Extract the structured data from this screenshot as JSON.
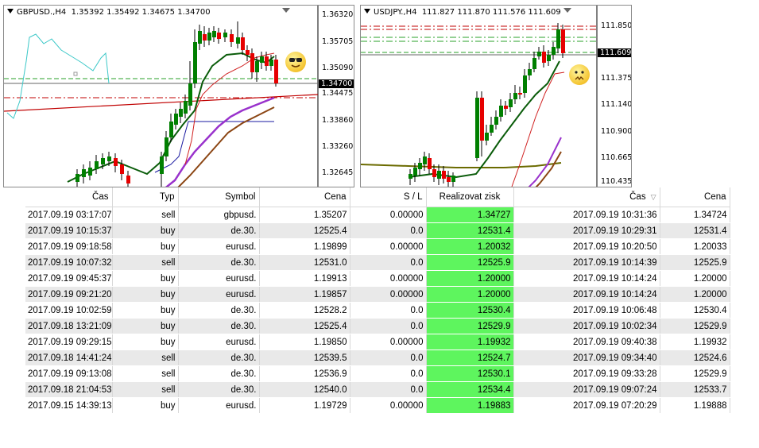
{
  "chart1": {
    "title_symbol": "GBPUSD.,H4",
    "ohlc": "1.35392 1.35492 1.34675 1.34700",
    "price_labels": [
      "1.36320",
      "1.35705",
      "1.35090",
      "1.34700",
      "1.34475",
      "1.33860",
      "1.33260",
      "1.32645"
    ],
    "current_price": "1.34700",
    "emoji": "cool-face-icon"
  },
  "chart2": {
    "title_symbol": "USDJPY.,H4",
    "ohlc": "111.827 111.870 111.576 111.609",
    "price_labels": [
      "111.850",
      "111.609",
      "111.375",
      "111.140",
      "110.900",
      "110.665",
      "110.435"
    ],
    "current_price": "111.609",
    "emoji": "sick-face-icon"
  },
  "colors": {
    "bull_candle": "#007f00",
    "bear_candle": "#e60000",
    "profit_highlight": "#5ef55e",
    "row_alt": "#e9e9e9"
  },
  "table": {
    "columns": [
      "Čas",
      "Typ",
      "Symbol",
      "Cena",
      "S / L",
      "Realizovat zisk",
      "Čas",
      "Cena"
    ],
    "sort_column_indicator": "▽",
    "rows": [
      [
        "2017.09.19 03:17:07",
        "sell",
        "gbpusd.",
        "1.35207",
        "0.00000",
        "1.34727",
        "2017.09.19 10:31:36",
        "1.34724"
      ],
      [
        "2017.09.19 10:15:37",
        "buy",
        "de.30.",
        "12525.4",
        "0.0",
        "12531.4",
        "2017.09.19 10:29:31",
        "12531.4"
      ],
      [
        "2017.09.19 09:18:58",
        "buy",
        "eurusd.",
        "1.19899",
        "0.00000",
        "1.20032",
        "2017.09.19 10:20:50",
        "1.20033"
      ],
      [
        "2017.09.19 10:07:32",
        "sell",
        "de.30.",
        "12531.0",
        "0.0",
        "12525.9",
        "2017.09.19 10:14:39",
        "12525.9"
      ],
      [
        "2017.09.19 09:45:37",
        "buy",
        "eurusd.",
        "1.19913",
        "0.00000",
        "1.20000",
        "2017.09.19 10:14:24",
        "1.20000"
      ],
      [
        "2017.09.19 09:21:20",
        "buy",
        "eurusd.",
        "1.19857",
        "0.00000",
        "1.20000",
        "2017.09.19 10:14:24",
        "1.20000"
      ],
      [
        "2017.09.19 10:02:59",
        "buy",
        "de.30.",
        "12528.2",
        "0.0",
        "12530.4",
        "2017.09.19 10:06:48",
        "12530.4"
      ],
      [
        "2017.09.18 13:21:09",
        "buy",
        "de.30.",
        "12525.4",
        "0.0",
        "12529.9",
        "2017.09.19 10:02:34",
        "12529.9"
      ],
      [
        "2017.09.19 09:29:15",
        "buy",
        "eurusd.",
        "1.19850",
        "0.00000",
        "1.19932",
        "2017.09.19 09:40:38",
        "1.19932"
      ],
      [
        "2017.09.18 14:41:24",
        "sell",
        "de.30.",
        "12539.5",
        "0.0",
        "12524.7",
        "2017.09.19 09:34:40",
        "12524.6"
      ],
      [
        "2017.09.19 09:13:08",
        "sell",
        "de.30.",
        "12536.9",
        "0.0",
        "12530.1",
        "2017.09.19 09:33:28",
        "12529.9"
      ],
      [
        "2017.09.18 21:04:53",
        "sell",
        "de.30.",
        "12540.0",
        "0.0",
        "12534.4",
        "2017.09.19 09:07:24",
        "12533.7"
      ],
      [
        "2017.09.15 14:39:13",
        "buy",
        "eurusd.",
        "1.19729",
        "0.00000",
        "1.19883",
        "2017.09.19 07:20:29",
        "1.19888"
      ]
    ]
  }
}
